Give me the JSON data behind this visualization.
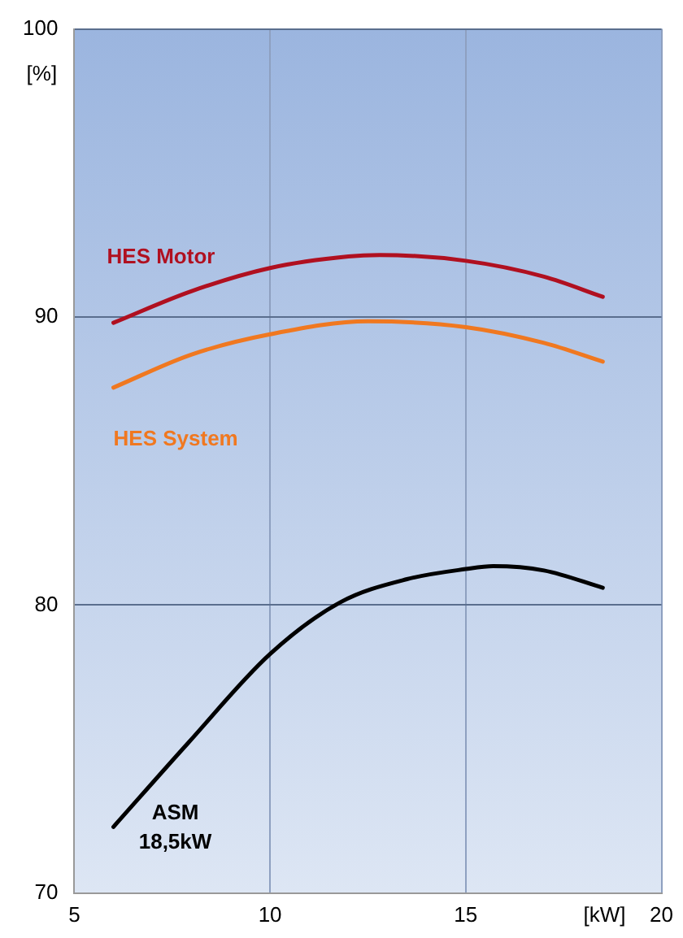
{
  "chart_data": {
    "type": "line",
    "xlabel": "[kW]",
    "ylabel": "[%]",
    "xlim": [
      5,
      20
    ],
    "xticks": [
      5,
      10,
      15,
      20
    ],
    "ylim": [
      70,
      100
    ],
    "yticks": [
      70,
      80,
      90,
      100
    ],
    "grid": true,
    "legend": false,
    "marker": "none",
    "line_style": "solid",
    "series": [
      {
        "name": "HES Motor",
        "color": "#b01020",
        "x": [
          6,
          8,
          10,
          12,
          12.8,
          15,
          17,
          18.5
        ],
        "values": [
          89.8,
          90.9,
          91.7,
          92.1,
          92.15,
          91.95,
          91.4,
          90.7
        ]
      },
      {
        "name": "HES System",
        "color": "#f07820",
        "x": [
          6,
          8,
          10,
          12.5,
          15,
          17,
          18.5
        ],
        "values": [
          87.55,
          88.7,
          89.4,
          89.85,
          89.65,
          89.1,
          88.45
        ]
      },
      {
        "name": "ASM 18,5kW",
        "color": "#000000",
        "x": [
          6,
          7.9,
          10,
          11.8,
          13.5,
          15,
          15.7,
          17,
          18.5
        ],
        "values": [
          72.3,
          75.2,
          78.3,
          80.1,
          80.9,
          81.25,
          81.35,
          81.2,
          80.6
        ]
      }
    ]
  }
}
